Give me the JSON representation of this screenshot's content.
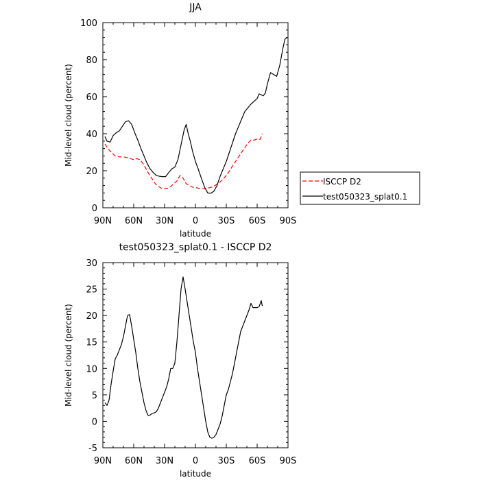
{
  "chart_data": [
    {
      "type": "line",
      "title": "JJA",
      "xlabel": "latitude",
      "ylabel": "Mid-level cloud (percent)",
      "xlim": [
        90,
        -90
      ],
      "ylim": [
        0,
        100
      ],
      "xticks": [
        {
          "v": 90,
          "label": "90N"
        },
        {
          "v": 60,
          "label": "60N"
        },
        {
          "v": 30,
          "label": "30N"
        },
        {
          "v": 0,
          "label": "0"
        },
        {
          "v": -30,
          "label": "30S"
        },
        {
          "v": -60,
          "label": "60S"
        },
        {
          "v": -90,
          "label": "90S"
        }
      ],
      "yticks": [
        0,
        20,
        40,
        60,
        80,
        100
      ],
      "series": [
        {
          "name": "ISCCP D2",
          "color": "#ff0000",
          "dash": "dashed",
          "x": [
            88,
            85,
            82,
            78,
            74,
            70,
            66,
            63,
            60,
            57,
            54,
            51,
            48,
            45,
            42,
            39,
            36,
            33,
            30,
            27,
            24,
            21,
            18,
            15,
            12,
            9,
            6,
            3,
            0,
            -3,
            -6,
            -9,
            -12,
            -15,
            -18,
            -21,
            -24,
            -27,
            -30,
            -33,
            -36,
            -39,
            -42,
            -45,
            -48,
            -51,
            -54,
            -57,
            -60,
            -63,
            -65
          ],
          "y": [
            34.5,
            32,
            30,
            28,
            27.5,
            27.5,
            27,
            26.5,
            26,
            26.5,
            26,
            24,
            21,
            18,
            15.5,
            13,
            11.5,
            10.5,
            10.3,
            10.5,
            11.5,
            13,
            14.5,
            17.5,
            16,
            13,
            12,
            11.2,
            11,
            10.5,
            10.3,
            10.3,
            10.6,
            11,
            11.7,
            12.7,
            14,
            15.5,
            17.5,
            19.8,
            22.5,
            25,
            27.5,
            30,
            32.5,
            35,
            36.5,
            36.5,
            37.2,
            37,
            40
          ]
        },
        {
          "name": "test050323_splat0.1",
          "color": "#000000",
          "dash": "solid",
          "x": [
            88,
            86,
            83,
            80,
            77,
            74,
            71,
            68,
            65,
            62,
            59,
            56,
            53,
            50,
            47,
            44,
            41,
            38,
            35,
            32,
            29,
            26,
            23,
            20,
            17,
            14,
            11,
            9,
            7,
            5,
            3,
            0,
            -3,
            -6,
            -9,
            -12,
            -15,
            -18,
            -21,
            -24,
            -27,
            -30,
            -33,
            -36,
            -39,
            -42,
            -45,
            -48,
            -51,
            -54,
            -57,
            -60,
            -62,
            -64,
            -66,
            -68,
            -70,
            -73,
            -76,
            -79,
            -82,
            -85,
            -87,
            -89
          ],
          "y": [
            38.5,
            36,
            35.5,
            39,
            40.5,
            41.5,
            44,
            46.5,
            47,
            45,
            40.5,
            36.5,
            32,
            28,
            24,
            21,
            19,
            17.5,
            17,
            16.8,
            16.8,
            19,
            21,
            22,
            26,
            34,
            42,
            45,
            40,
            36,
            31,
            25,
            20.5,
            15.5,
            11,
            8,
            7.8,
            9,
            12,
            17,
            21,
            25,
            30,
            35,
            40,
            44,
            48,
            52,
            54,
            56,
            57.5,
            59,
            61.5,
            61,
            60.5,
            62,
            67,
            73,
            72,
            71,
            77,
            86,
            91,
            92
          ]
        }
      ],
      "legend": {
        "placement": "right",
        "entries": [
          "ISCCP D2",
          "test050323_splat0.1"
        ]
      }
    },
    {
      "type": "line",
      "title": "test050323_splat0.1 - ISCCP D2",
      "xlabel": "latitude",
      "ylabel": "Mid-level cloud (percent)",
      "xlim": [
        90,
        -90
      ],
      "ylim": [
        -5,
        30
      ],
      "xticks": [
        {
          "v": 90,
          "label": "90N"
        },
        {
          "v": 60,
          "label": "60N"
        },
        {
          "v": 30,
          "label": "30N"
        },
        {
          "v": 0,
          "label": "0"
        },
        {
          "v": -30,
          "label": "30S"
        },
        {
          "v": -60,
          "label": "60S"
        },
        {
          "v": -90,
          "label": "90S"
        }
      ],
      "yticks": [
        -5,
        0,
        5,
        10,
        15,
        20,
        25,
        30
      ],
      "series": [
        {
          "color": "#000000",
          "dash": "solid",
          "x": [
            88,
            86,
            84,
            82,
            80,
            78,
            76,
            74,
            72,
            70,
            68,
            66,
            64,
            62,
            60,
            58,
            56,
            54,
            52,
            50,
            48,
            46,
            44,
            42,
            40,
            38,
            36,
            34,
            32,
            30,
            28,
            26,
            24,
            22,
            20,
            18,
            16,
            14,
            12,
            10,
            8,
            6,
            4,
            2,
            0,
            -2,
            -4,
            -6,
            -8,
            -10,
            -12,
            -14,
            -16,
            -18,
            -20,
            -22,
            -24,
            -26,
            -28,
            -30,
            -32,
            -34,
            -36,
            -38,
            -40,
            -42,
            -44,
            -46,
            -48,
            -50,
            -52,
            -54,
            -56,
            -58,
            -60,
            -62,
            -64,
            -65
          ],
          "y": [
            3.5,
            3,
            4,
            7,
            9.5,
            11.8,
            12.5,
            13.5,
            14.5,
            16,
            18,
            20,
            20.2,
            18,
            15.5,
            13,
            10,
            7.5,
            5.5,
            3.5,
            2,
            1.1,
            1.2,
            1.5,
            1.6,
            1.8,
            2.5,
            3.5,
            4.5,
            5.5,
            6.5,
            8,
            10,
            10,
            11,
            15,
            20,
            25,
            27.3,
            25,
            22.5,
            20,
            17.5,
            15,
            13,
            10,
            7.5,
            5,
            2.5,
            0,
            -2,
            -3,
            -3.2,
            -3,
            -2.5,
            -1.5,
            -0.5,
            1,
            3,
            5,
            6,
            7.5,
            9,
            11,
            13,
            15,
            17,
            18,
            19,
            20,
            21,
            22.3,
            21.5,
            21.5,
            21.5,
            21.7,
            22.8,
            21.8
          ]
        }
      ]
    }
  ]
}
